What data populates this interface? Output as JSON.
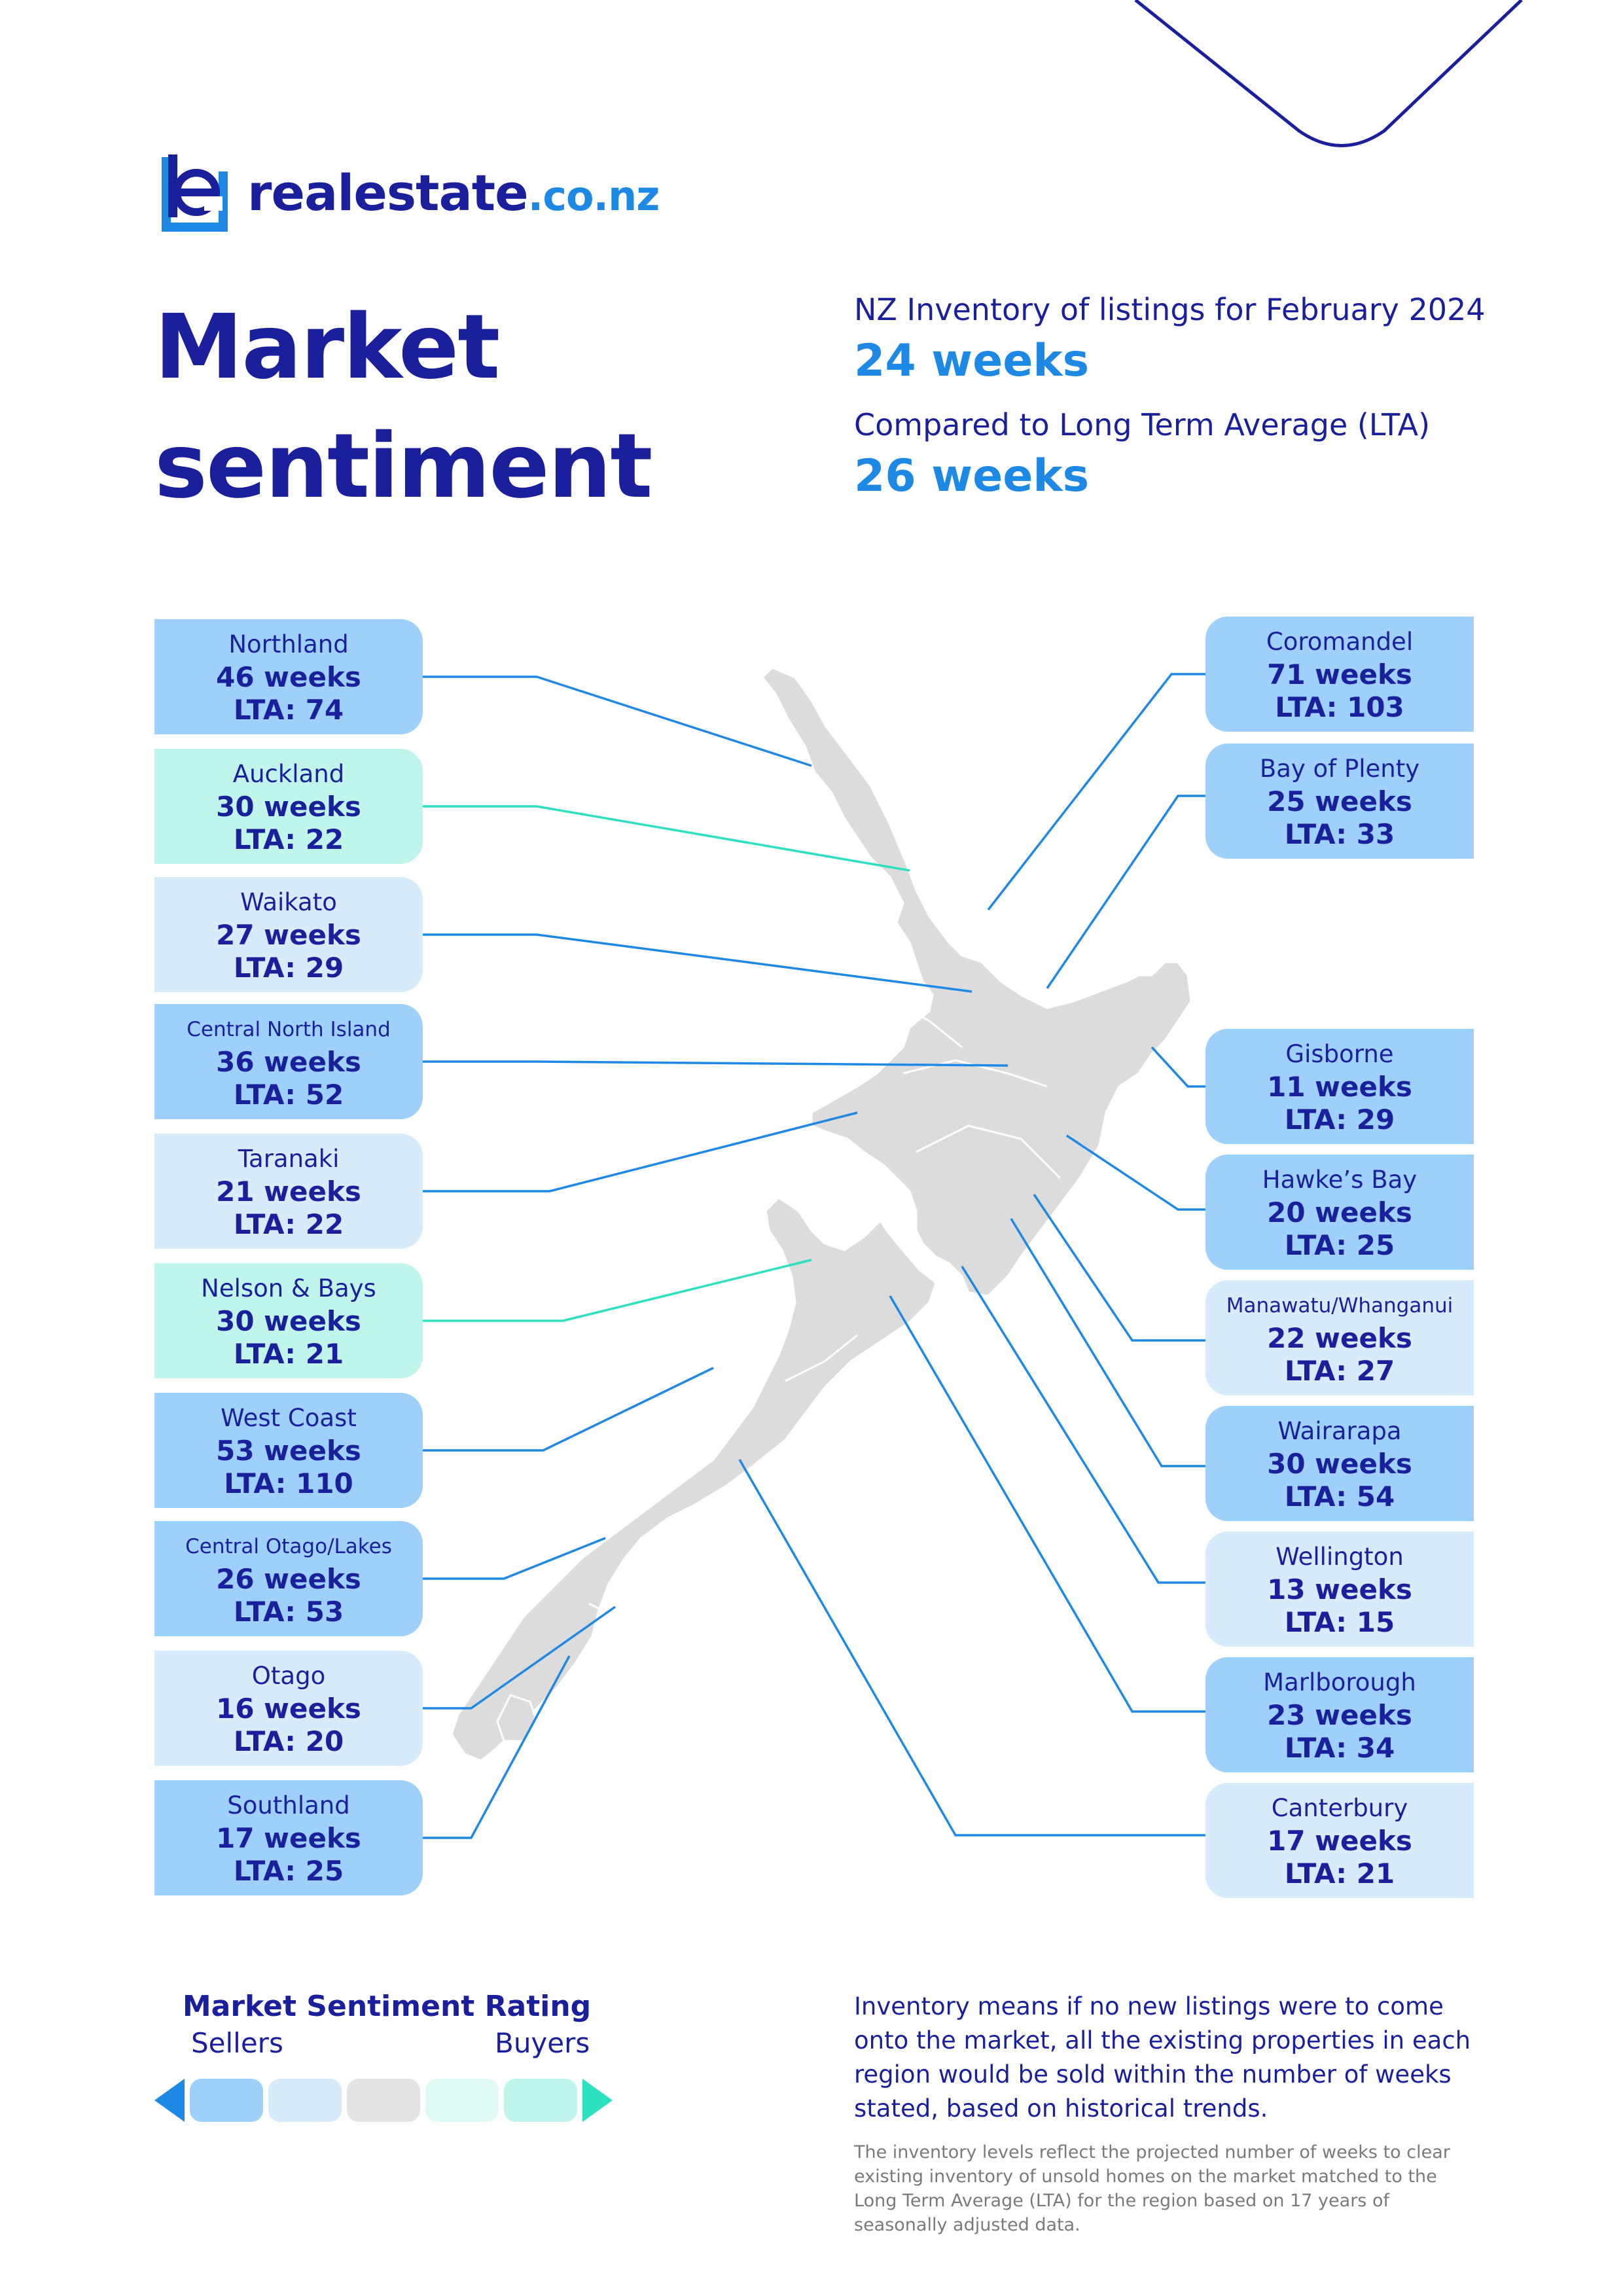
{
  "brand": {
    "name": "realestate",
    "domain": ".co.nz"
  },
  "title_lines": [
    "Market",
    "sentiment"
  ],
  "summary": {
    "inventory_label": "NZ Inventory of listings for February 2024",
    "inventory_value": "24 weeks",
    "lta_label": "Compared to Long Term Average (LTA)",
    "lta_value": "26 weeks"
  },
  "colors": {
    "navy": "#1a1f9c",
    "accent_blue": "#1e88e5",
    "mid_blue": "#9dd1fb",
    "light_blue": "#d6ecfc",
    "mint": "#bff5ea",
    "map_grey": "#dcdcdc"
  },
  "regions_left": [
    {
      "name": "Northland",
      "weeks": "46 weeks",
      "lta": "LTA: 74",
      "tone": "mid"
    },
    {
      "name": "Auckland",
      "weeks": "30 weeks",
      "lta": "LTA: 22",
      "tone": "mint"
    },
    {
      "name": "Waikato",
      "weeks": "27 weeks",
      "lta": "LTA: 29",
      "tone": "light"
    },
    {
      "name": "Central North Island",
      "weeks": "36 weeks",
      "lta": "LTA: 52",
      "tone": "mid"
    },
    {
      "name": "Taranaki",
      "weeks": "21 weeks",
      "lta": "LTA: 22",
      "tone": "light"
    },
    {
      "name": "Nelson & Bays",
      "weeks": "30 weeks",
      "lta": "LTA: 21",
      "tone": "mint"
    },
    {
      "name": "West Coast",
      "weeks": "53 weeks",
      "lta": "LTA: 110",
      "tone": "mid"
    },
    {
      "name": "Central Otago/Lakes",
      "weeks": "26 weeks",
      "lta": "LTA: 53",
      "tone": "mid"
    },
    {
      "name": "Otago",
      "weeks": "16 weeks",
      "lta": "LTA: 20",
      "tone": "light"
    },
    {
      "name": "Southland",
      "weeks": "17 weeks",
      "lta": "LTA: 25",
      "tone": "mid"
    }
  ],
  "regions_right": [
    {
      "name": "Coromandel",
      "weeks": "71 weeks",
      "lta": "LTA: 103",
      "tone": "mid"
    },
    {
      "name": "Bay of Plenty",
      "weeks": "25 weeks",
      "lta": "LTA: 33",
      "tone": "mid"
    },
    {
      "name": "Gisborne",
      "weeks": "11 weeks",
      "lta": "LTA: 29",
      "tone": "mid"
    },
    {
      "name": "Hawke’s Bay",
      "weeks": "20 weeks",
      "lta": "LTA: 25",
      "tone": "mid"
    },
    {
      "name": "Manawatu/Whanganui",
      "weeks": "22 weeks",
      "lta": "LTA: 27",
      "tone": "light"
    },
    {
      "name": "Wairarapa",
      "weeks": "30 weeks",
      "lta": "LTA: 54",
      "tone": "mid"
    },
    {
      "name": "Wellington",
      "weeks": "13 weeks",
      "lta": "LTA: 15",
      "tone": "light"
    },
    {
      "name": "Marlborough",
      "weeks": "23 weeks",
      "lta": "LTA: 34",
      "tone": "mid"
    },
    {
      "name": "Canterbury",
      "weeks": "17 weeks",
      "lta": "LTA: 21",
      "tone": "light"
    }
  ],
  "rating": {
    "title": "Market Sentiment Rating",
    "sellers_label": "Sellers",
    "buyers_label": "Buyers",
    "scale_colors": [
      "#9dd1fb",
      "#d6ecfc",
      "#e4e4e4",
      "#e0fbf5",
      "#bff5ea"
    ]
  },
  "footnote": {
    "main": "Inventory means if no new listings were to come onto the market, all the existing properties in each region would be sold within the number of weeks stated, based on historical trends.",
    "small": "The inventory levels reflect the projected number of weeks to clear existing inventory of unsold homes on the market matched to the Long Term Average (LTA) for the region based on 17 years of seasonally adjusted data."
  }
}
